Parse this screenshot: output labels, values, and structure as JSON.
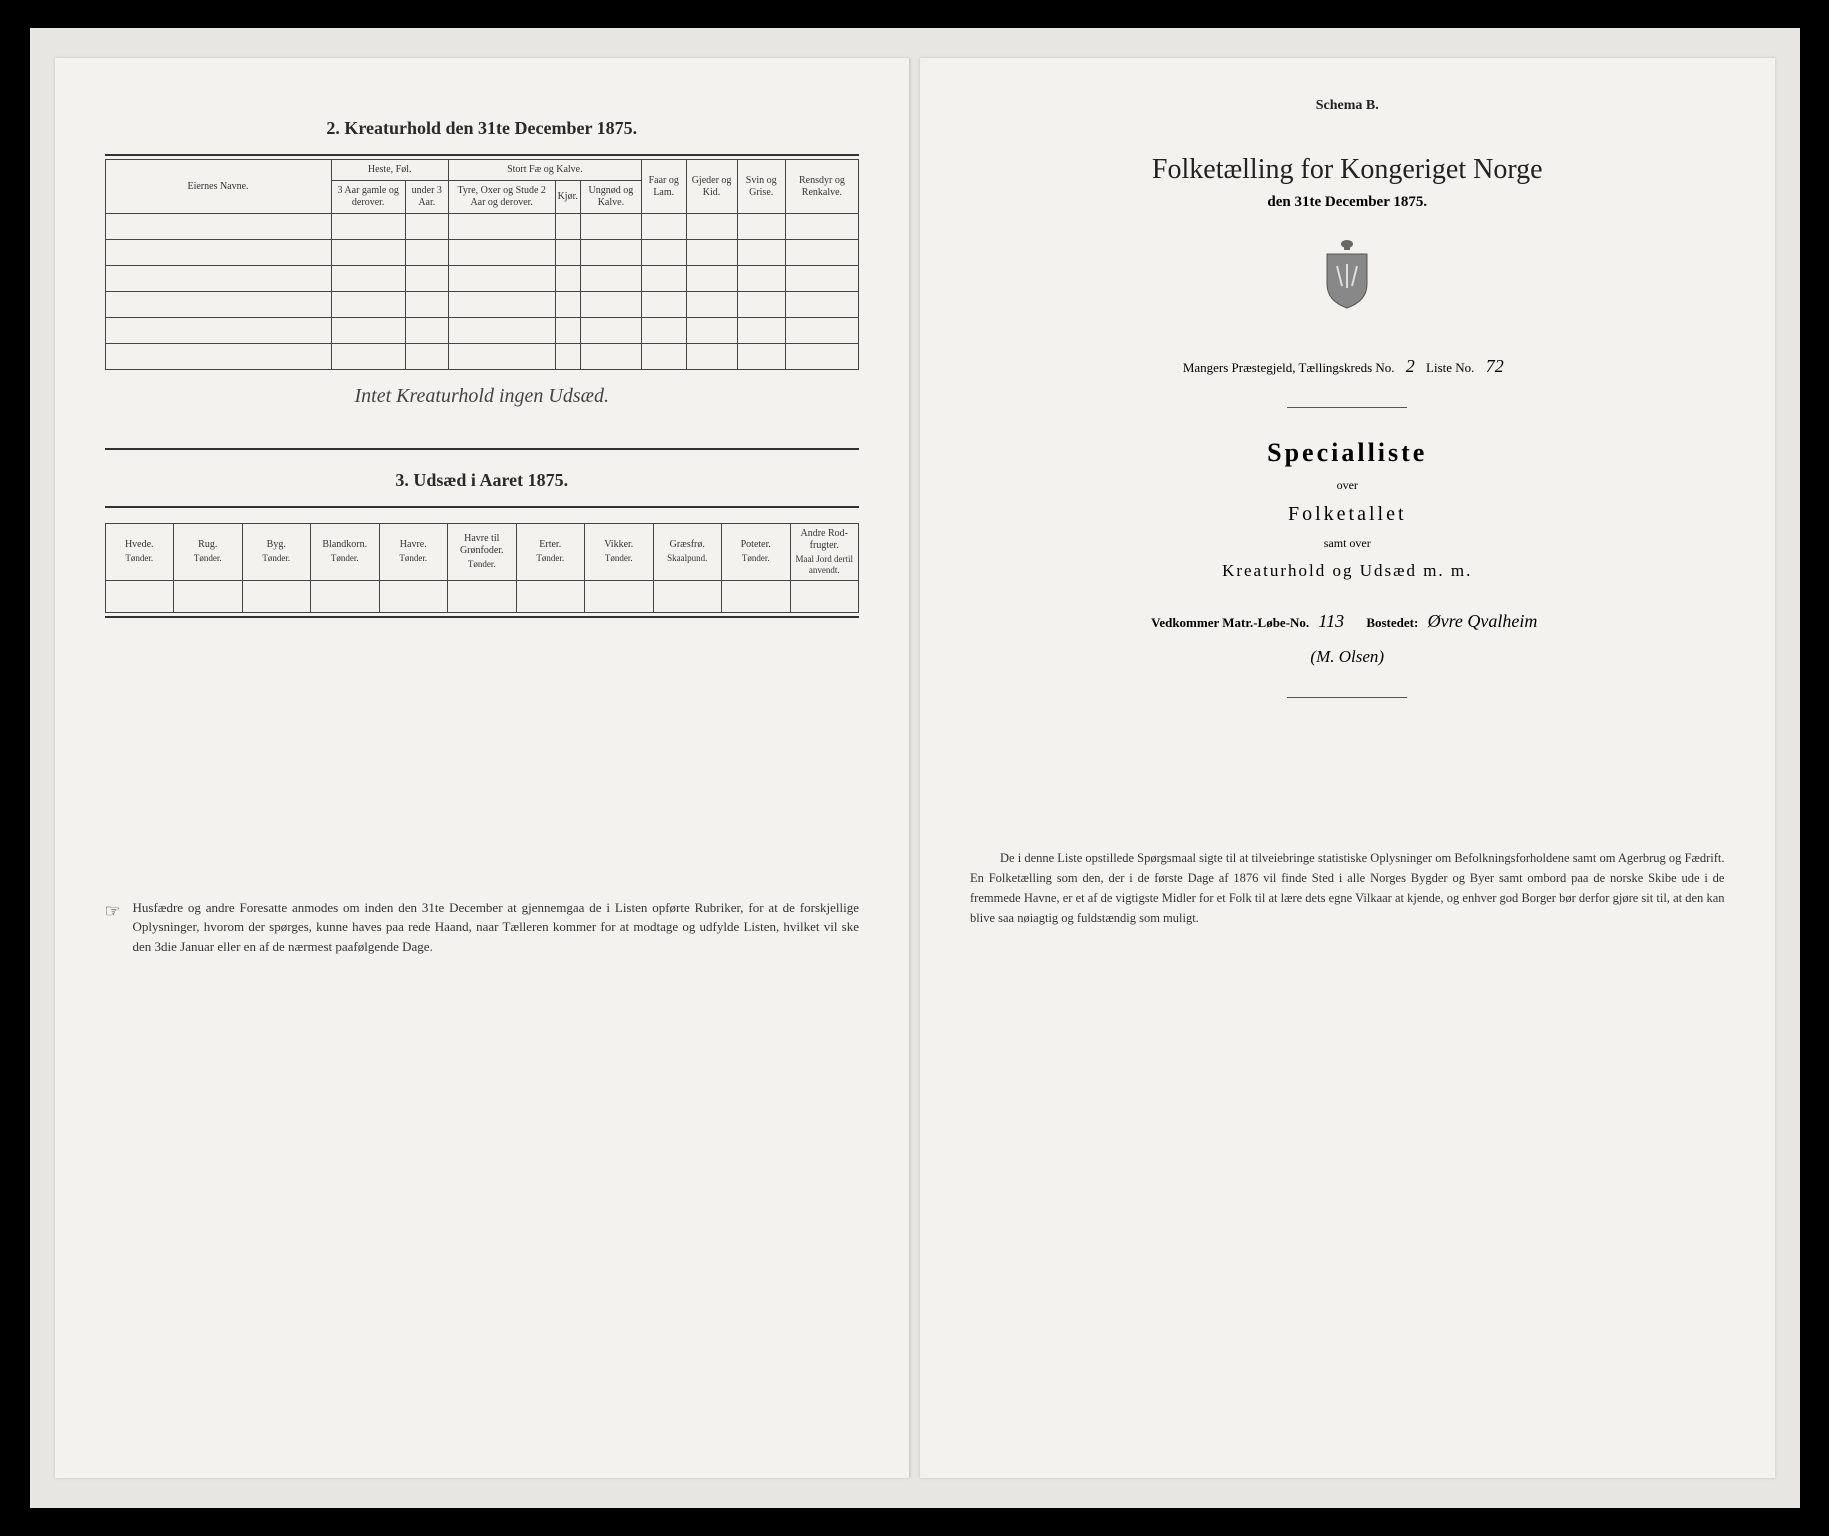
{
  "left": {
    "section2_title": "2.  Kreaturhold den 31te December 1875.",
    "table2": {
      "headers": {
        "names": "Eiernes Navne.",
        "heste": "Heste, Føl.",
        "heste_sub1": "3 Aar gamle og derover.",
        "heste_sub2": "under 3 Aar.",
        "stort": "Stort Fæ og Kalve.",
        "stort_sub1": "Tyre, Oxer og Stude 2 Aar og derover.",
        "stort_sub2": "Kjør.",
        "stort_sub3": "Ungnød og Kalve.",
        "faar": "Faar og Lam.",
        "gjeder": "Gjeder og Kid.",
        "svin": "Svin og Grise.",
        "rensdyr": "Rensdyr og Renkalve."
      },
      "rows": 6
    },
    "handwritten_note": "Intet Kreaturhold ingen Udsæd.",
    "section3_title": "3.  Udsæd i Aaret 1875.",
    "table3": {
      "headers": [
        {
          "main": "Hvede.",
          "sub": "Tønder."
        },
        {
          "main": "Rug.",
          "sub": "Tønder."
        },
        {
          "main": "Byg.",
          "sub": "Tønder."
        },
        {
          "main": "Blandkorn.",
          "sub": "Tønder."
        },
        {
          "main": "Havre.",
          "sub": "Tønder."
        },
        {
          "main": "Havre til Grønfoder.",
          "sub": "Tønder."
        },
        {
          "main": "Erter.",
          "sub": "Tønder."
        },
        {
          "main": "Vikker.",
          "sub": "Tønder."
        },
        {
          "main": "Græsfrø.",
          "sub": "Skaalpund."
        },
        {
          "main": "Poteter.",
          "sub": "Tønder."
        },
        {
          "main": "Andre Rod-frugter.",
          "sub": "Maal Jord dertil anvendt."
        }
      ]
    },
    "footer": "Husfædre og andre Foresatte anmodes om inden den 31te December at gjennemgaa de i Listen opførte Rubriker, for at de forskjellige Oplysninger, hvorom der spørges, kunne haves paa rede Haand, naar Tælleren kommer for at modtage og udfylde Listen, hvilket vil ske den 3die Januar eller en af de nærmest paafølgende Dage."
  },
  "right": {
    "schema": "Schema B.",
    "main_title": "Folketælling for Kongeriget Norge",
    "sub_date": "den 31te December 1875.",
    "parish_label": "Mangers Præstegjeld,  Tællingskreds No.",
    "kreds_no": "2",
    "liste_label": "Liste No.",
    "liste_no": "72",
    "special": "Specialliste",
    "over": "over",
    "folketallet": "Folketallet",
    "samt_over": "samt over",
    "kreatur": "Kreaturhold og Udsæd m. m.",
    "matr_label": "Vedkommer Matr.-Løbe-No.",
    "matr_no": "113",
    "bostedet_label": "Bostedet:",
    "bostedet": "Øvre Qvalheim",
    "bostedet_sub": "(M. Olsen)",
    "bottom": "De i denne Liste opstillede Spørgsmaal sigte til at tilveiebringe statistiske Oplysninger om Befolkningsforholdene samt om Agerbrug og Fædrift.  En Folketælling som den, der i de første Dage af 1876 vil finde Sted i alle Norges Bygder og Byer samt ombord paa de norske Skibe ude i de fremmede Havne, er et af de vigtigste Midler for et Folk til at lære dets egne Vilkaar at kjende, og enhver god Borger bør derfor gjøre sit til, at den kan blive saa nøiagtig og fuldstændig som muligt."
  },
  "colors": {
    "page_bg": "#f4f2ee",
    "scan_bg": "#e8e6e2",
    "text": "#2a2a2a",
    "border": "#444"
  }
}
